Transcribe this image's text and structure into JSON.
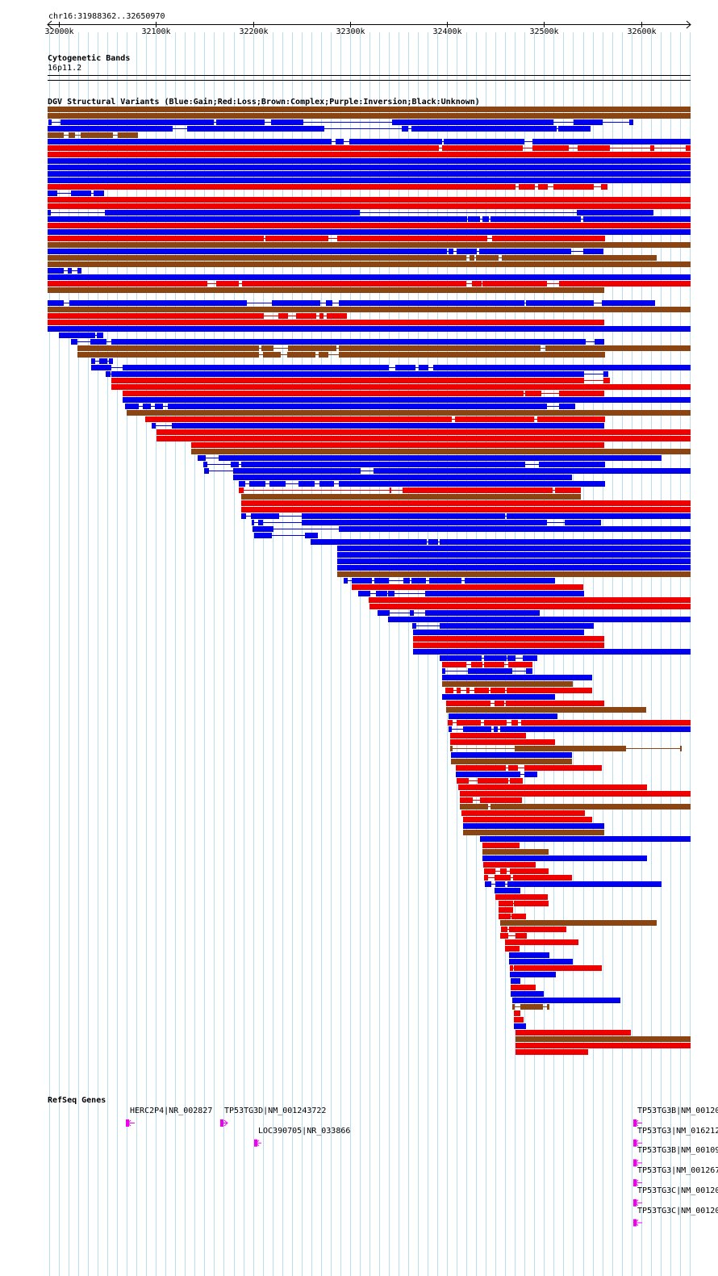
{
  "region_label": "chr16:31988362..32650970",
  "ruler": {
    "start_bp": 31988362,
    "end_bp": 32650970,
    "ticks": [
      "32000k",
      "32100k",
      "32200k",
      "32300k",
      "32400k",
      "32500k",
      "32600k"
    ],
    "tick_values_kb": [
      32000,
      32100,
      32200,
      32300,
      32400,
      32500,
      32600
    ]
  },
  "cytoband": {
    "title": "Cytogenetic Bands",
    "band": "16p11.2"
  },
  "sv_track": {
    "title": "DGV Structural Variants (Blue:Gain;Red:Loss;Brown:Complex;Purple:Inversion;Black:Unknown)",
    "colors": {
      "gain": "#0000ee",
      "loss": "#ee0000",
      "complex": "#8b4513",
      "inversion": "#800080",
      "unknown": "#000000"
    }
  },
  "genes_track": {
    "title": "RefSeq Genes",
    "color": "#ee00ee",
    "genes": [
      {
        "label": "HERC2P4|NR_002827",
        "start_kb": 32069,
        "end_kb": 32078,
        "row": 0,
        "strand": "-"
      },
      {
        "label": "TP53TG3D|NM_001243722",
        "start_kb": 32166,
        "end_kb": 32174,
        "row": 0,
        "strand": "+"
      },
      {
        "label": "LOC390705|NR_033866",
        "start_kb": 32201,
        "end_kb": 32209,
        "row": 1,
        "strand": "-"
      },
      {
        "label": "TP53TG3B|NM_00120",
        "start_kb": 32592,
        "end_kb": 32601,
        "row": 0,
        "strand": "-"
      },
      {
        "label": "TP53TG3|NM_016212",
        "start_kb": 32592,
        "end_kb": 32601,
        "row": 1,
        "strand": "-"
      },
      {
        "label": "TP53TG3B|NM_00109",
        "start_kb": 32592,
        "end_kb": 32601,
        "row": 2,
        "strand": "-"
      },
      {
        "label": "TP53TG3|NM_001267",
        "start_kb": 32592,
        "end_kb": 32601,
        "row": 3,
        "strand": "-"
      },
      {
        "label": "TP53TG3C|NM_00120",
        "start_kb": 32592,
        "end_kb": 32601,
        "row": 4,
        "strand": "-"
      },
      {
        "label": "TP53TG3C|NM_00120",
        "start_kb": 32592,
        "end_kb": 32601,
        "row": 5,
        "strand": "-"
      }
    ]
  }
}
